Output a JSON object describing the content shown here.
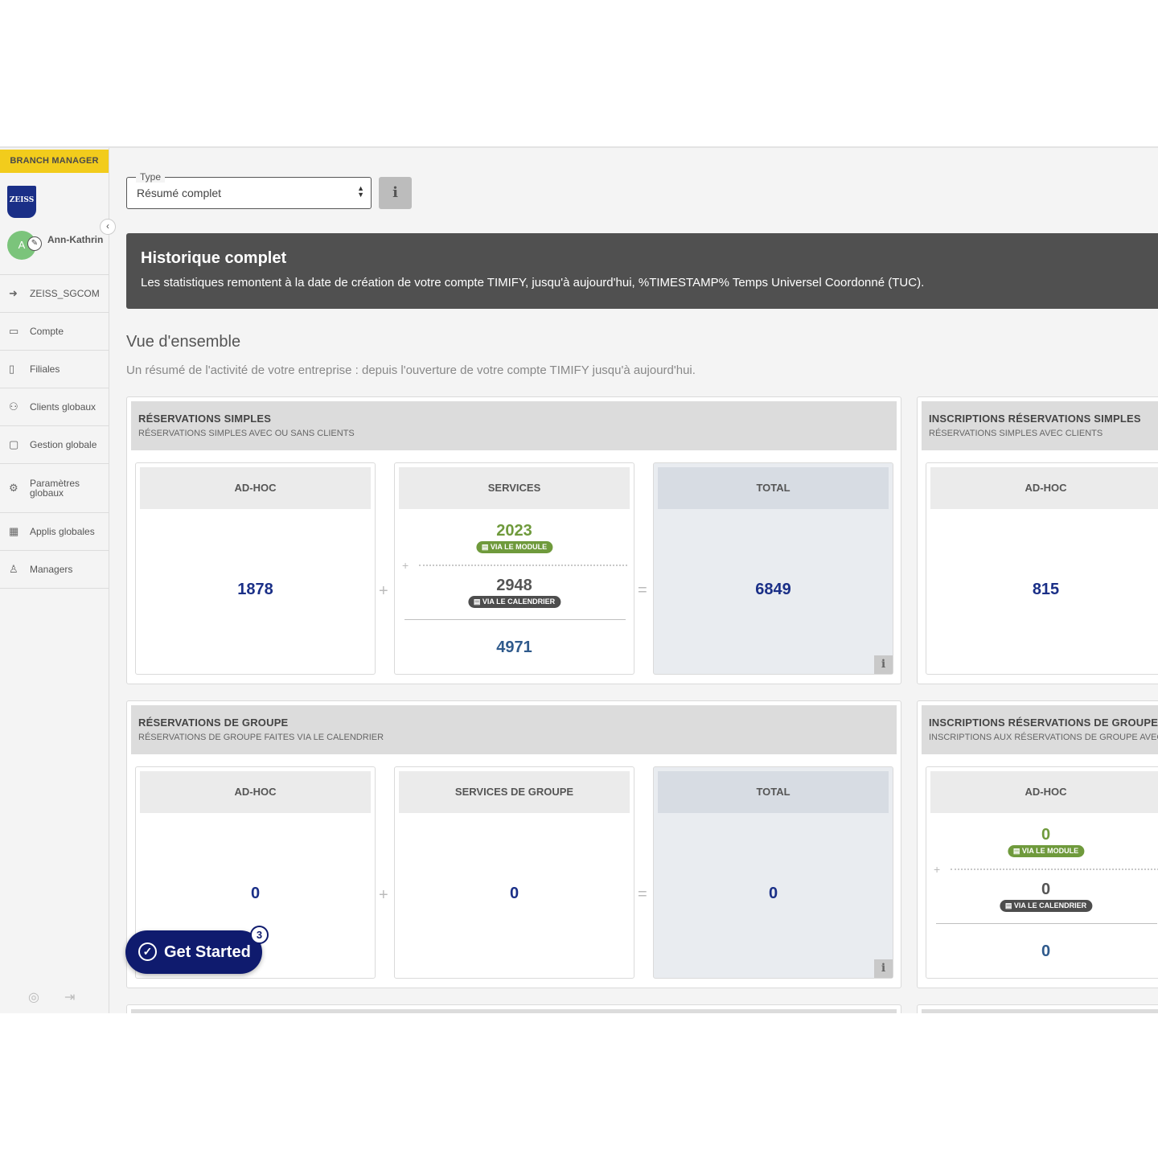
{
  "sidebar": {
    "role": "BRANCH MANAGER",
    "logo_text": "ZEISS",
    "user": {
      "initial": "A",
      "name": "Ann-Kathrin"
    },
    "items": [
      {
        "label": "ZEISS_SGCOM",
        "icon": "arrow-circle-icon"
      },
      {
        "label": "Compte",
        "icon": "briefcase-icon"
      },
      {
        "label": "Filiales",
        "icon": "building-icon"
      },
      {
        "label": "Clients globaux",
        "icon": "users-icon"
      },
      {
        "label": "Gestion globale",
        "icon": "bag-icon"
      },
      {
        "label": "Paramètres globaux",
        "icon": "gears-icon"
      },
      {
        "label": "Applis globales",
        "icon": "grid-icon"
      },
      {
        "label": "Managers",
        "icon": "person-icon"
      }
    ]
  },
  "filter": {
    "legend": "Type",
    "value": "Résumé complet"
  },
  "banner": {
    "title": "Historique complet",
    "text": "Les statistiques remontent à la date de création de votre compte TIMIFY, jusqu'à aujourd'hui, %TIMESTAMP% Temps Universel Coordonné (TUC)."
  },
  "overview": {
    "title": "Vue d'ensemble",
    "subtitle": "Un résumé de l'activité de votre entreprise : depuis l'ouverture de votre compte TIMIFY jusqu'à aujourd'hui."
  },
  "simple": {
    "title": "RÉSERVATIONS SIMPLES",
    "subtitle": "RÉSERVATIONS SIMPLES AVEC OU SANS CLIENTS",
    "adhoc_label": "AD-HOC",
    "adhoc_value": "1878",
    "services_label": "SERVICES",
    "module_value": "2023",
    "module_label": "VIA LE MODULE",
    "calendar_value": "2948",
    "calendar_label": "VIA LE CALENDRIER",
    "services_total": "4971",
    "total_label": "TOTAL",
    "total_value": "6849"
  },
  "simple_reg": {
    "title": "INSCRIPTIONS RÉSERVATIONS SIMPLES",
    "subtitle": "RÉSERVATIONS SIMPLES AVEC CLIENTS",
    "adhoc_label": "AD-HOC",
    "adhoc_value": "815"
  },
  "group": {
    "title": "RÉSERVATIONS DE GROUPE",
    "subtitle": "RÉSERVATIONS DE GROUPE FAITES VIA LE CALENDRIER",
    "adhoc_label": "AD-HOC",
    "adhoc_value": "0",
    "services_label": "SERVICES DE GROUPE",
    "services_value": "0",
    "total_label": "TOTAL",
    "total_value": "0"
  },
  "group_reg": {
    "title": "INSCRIPTIONS RÉSERVATIONS DE GROUPE",
    "subtitle": "INSCRIPTIONS AUX RÉSERVATIONS DE GROUPE AVEC C",
    "adhoc_label": "AD-HOC",
    "module_value": "0",
    "module_label": "VIA LE MODULE",
    "calendar_value": "0",
    "calendar_label": "VIA LE CALENDRIER",
    "total": "0"
  },
  "get_started": {
    "label": "Get Started",
    "badge": "3"
  },
  "colors": {
    "accent_yellow": "#f2cc1c",
    "brand_blue": "#1a2f87",
    "module_green": "#6f9a3c",
    "banner_gray": "#505050"
  }
}
